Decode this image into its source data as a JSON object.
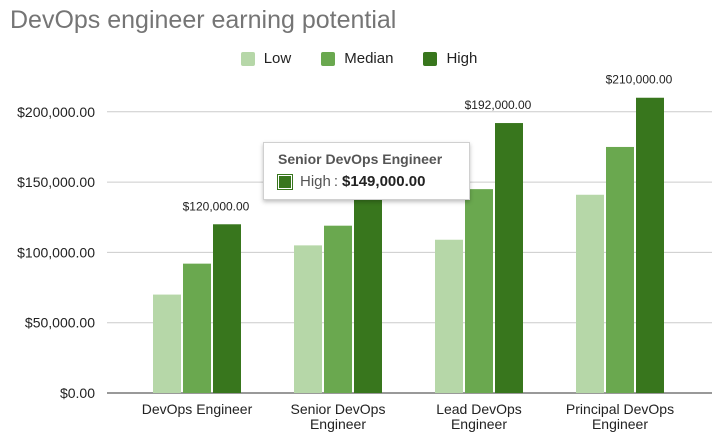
{
  "chart_data": {
    "type": "bar",
    "title": "DevOps engineer earning potential",
    "xlabel": "",
    "ylabel": "",
    "categories": [
      [
        "DevOps Engineer"
      ],
      [
        "Senior DevOps",
        "Engineer"
      ],
      [
        "Lead DevOps",
        "Engineer"
      ],
      [
        "Principal DevOps",
        "Engineer"
      ]
    ],
    "series": [
      {
        "name": "Low",
        "color": "#b6d7a8",
        "values": [
          70000,
          105000,
          109000,
          141000
        ]
      },
      {
        "name": "Median",
        "color": "#6aa84f",
        "values": [
          92000,
          119000,
          145000,
          175000
        ]
      },
      {
        "name": "High",
        "color": "#38761d",
        "values": [
          120000,
          149000,
          192000,
          210000
        ]
      }
    ],
    "data_labels": [
      {
        "category_index": 0,
        "series_index": 2,
        "text": "$120,000.00"
      },
      {
        "category_index": 2,
        "series_index": 2,
        "text": "$192,000.00"
      },
      {
        "category_index": 3,
        "series_index": 2,
        "text": "$210,000.00"
      }
    ],
    "yticks": [
      0,
      50000,
      100000,
      150000,
      200000
    ],
    "ytick_labels": [
      "$0.00",
      "$50,000.00",
      "$100,000.00",
      "$150,000.00",
      "$200,000.00"
    ],
    "ylim": [
      0,
      210000
    ],
    "grid": true,
    "legend_position": "top-center",
    "tooltip": {
      "title": "Senior DevOps Engineer",
      "series": "High",
      "colon": ":",
      "value": "$149,000.00"
    }
  }
}
